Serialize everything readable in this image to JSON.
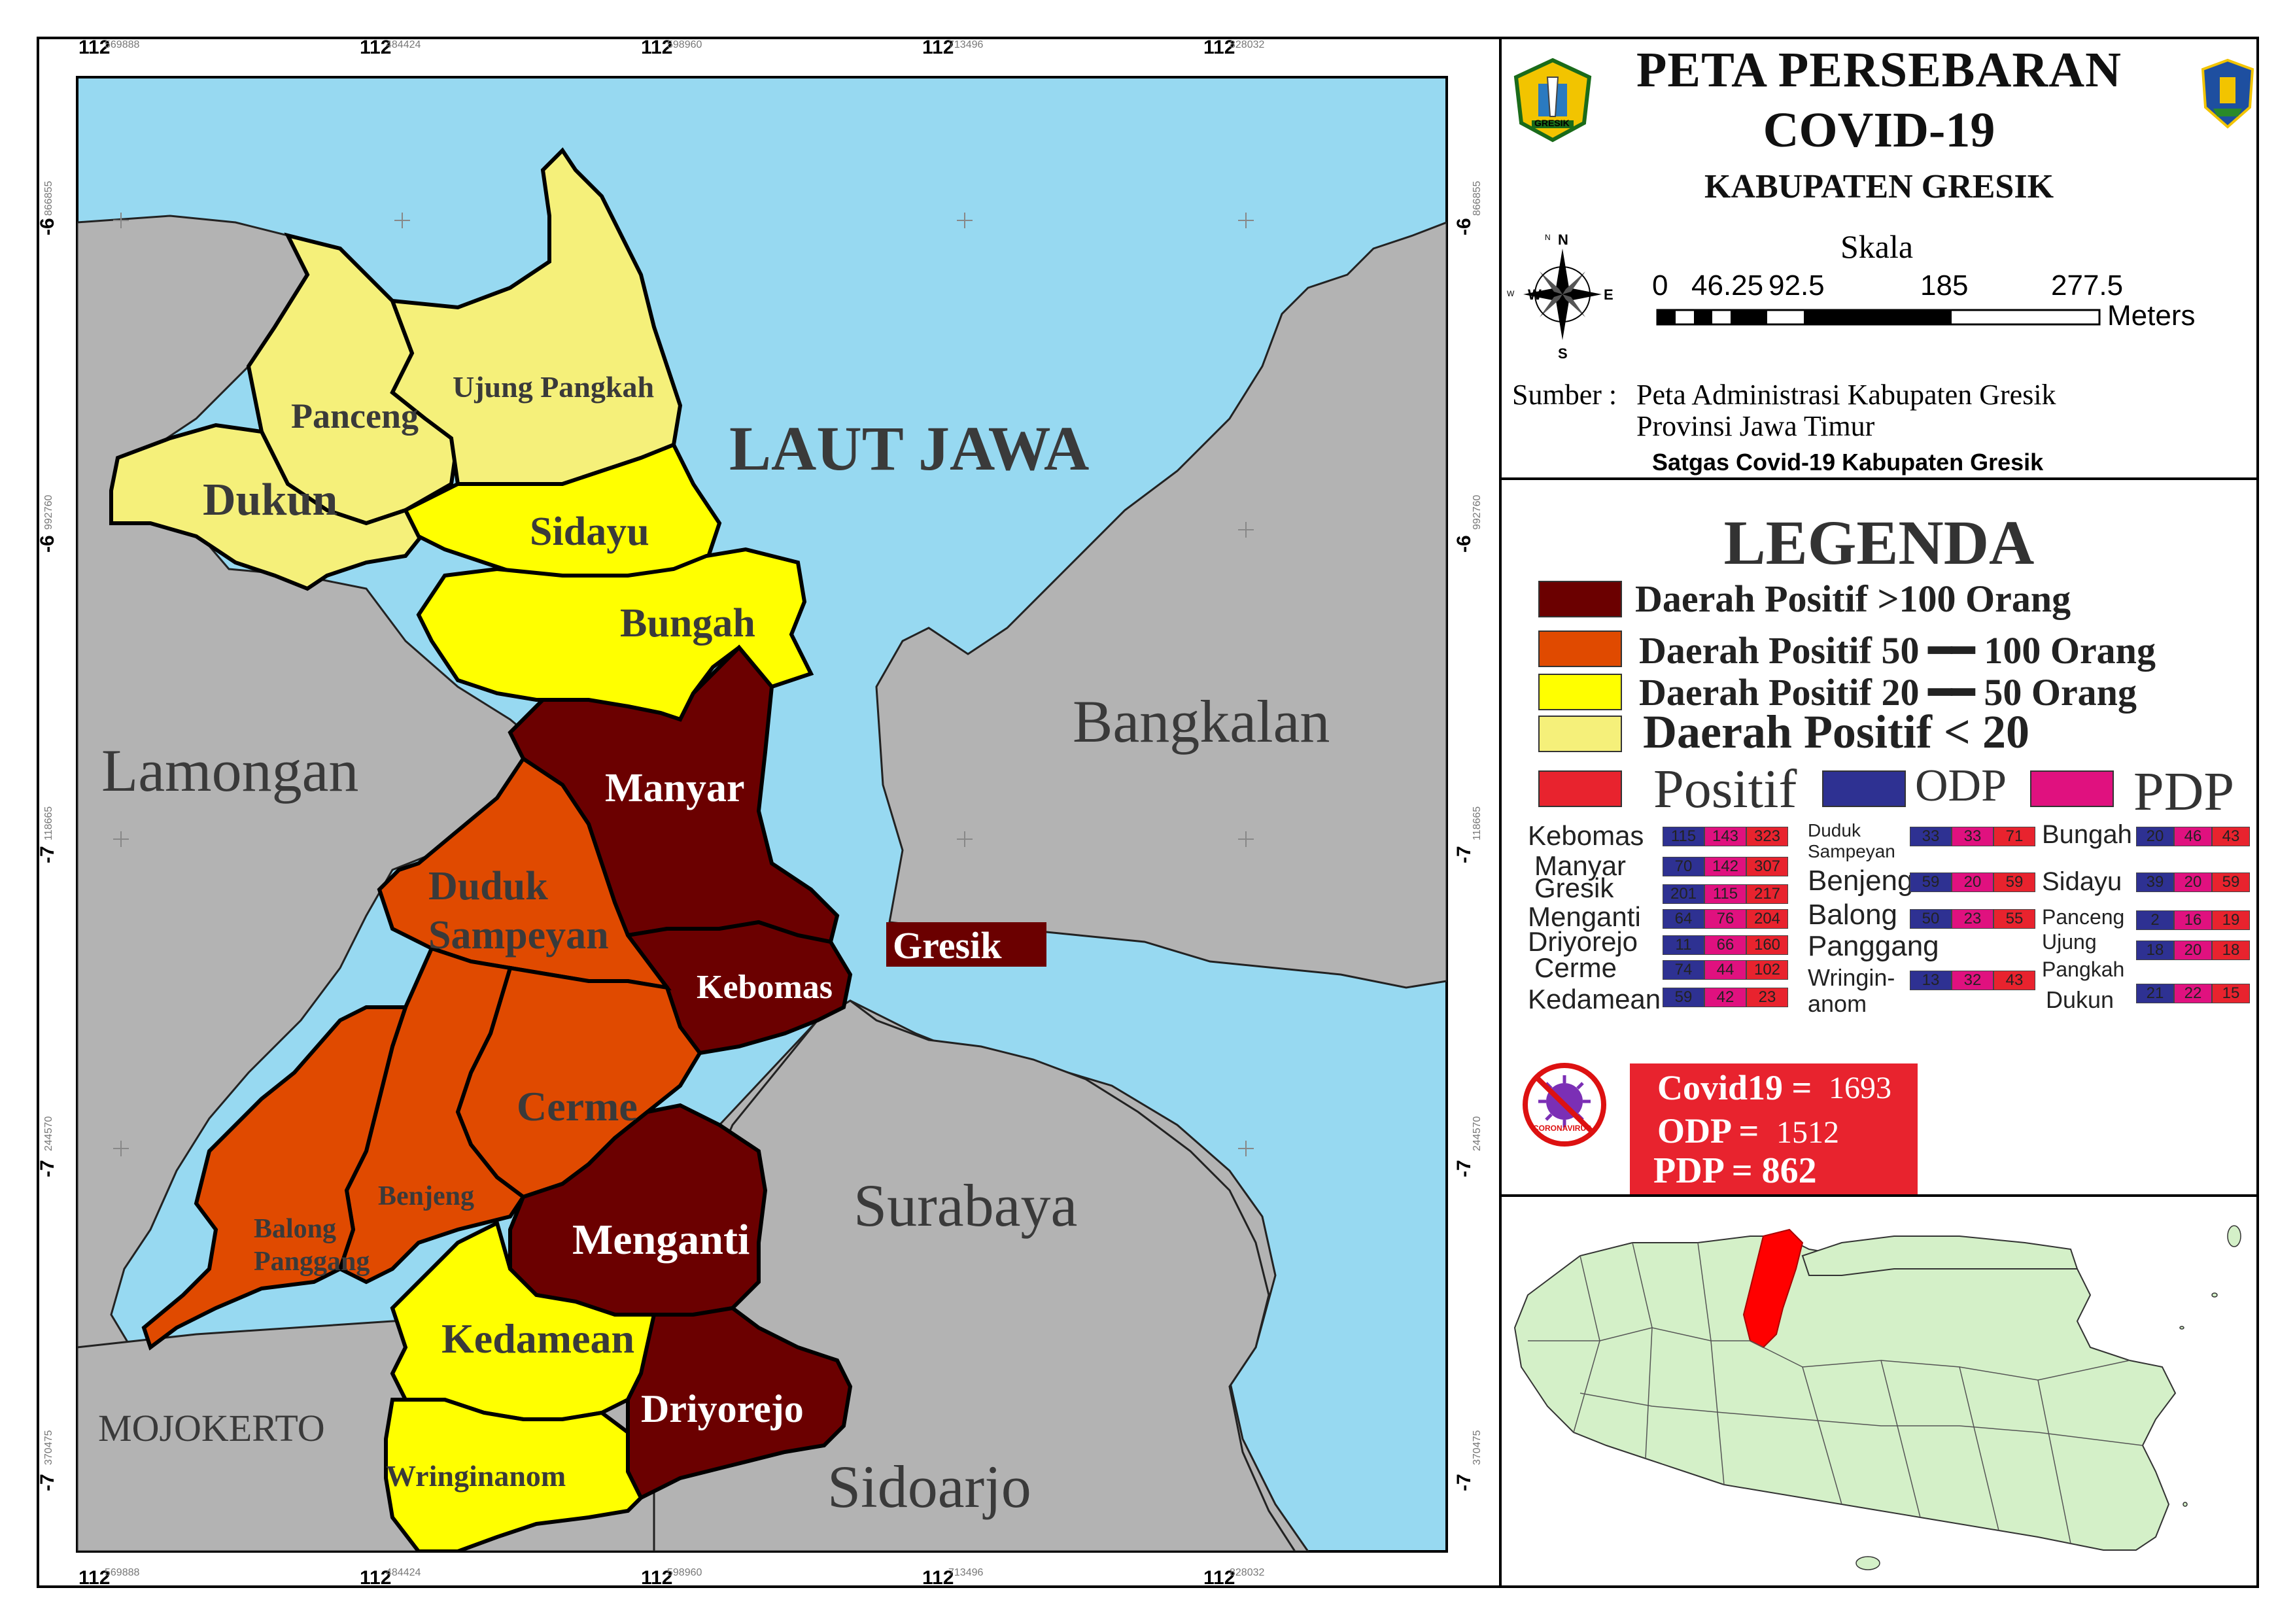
{
  "title": {
    "line1": "PETA PERSEBARAN",
    "line2": "COVID-19",
    "line3": "KABUPATEN GRESIK",
    "left_logo_caption": "GRESIK",
    "left_logo_icon": "gresik-regency-emblem",
    "right_logo_icon": "east-java-province-emblem"
  },
  "scale": {
    "label": "Skala",
    "ticks": [
      "0",
      "46.25",
      "92.5",
      "185",
      "277.5"
    ],
    "unit": "Meters"
  },
  "compass": {
    "n": "N",
    "s": "S",
    "e": "E",
    "w": "W",
    "n_small": "N",
    "w_small": "W",
    "icon": "north-arrow-compass-rose"
  },
  "source": {
    "label": "Sumber :",
    "line1": "Peta Administrasi Kabupaten Gresik",
    "line2": "Provinsi Jawa Timur",
    "credit": "Satgas Covid-19 Kabupaten Gresik"
  },
  "legend": {
    "title": "LEGENDA",
    "classes": [
      {
        "label": "Daerah Positif >100 Orang",
        "color": "#6b0000"
      },
      {
        "label": "Daerah Positif 50 ━━ 100 Orang",
        "color": "#e04a00"
      },
      {
        "label": "Daerah Positif 20 ━━ 50 Orang",
        "color": "#ffff00"
      },
      {
        "label": "Daerah Positif < 20",
        "color": "#f5f07a"
      }
    ],
    "series": [
      {
        "label": "Positif",
        "color": "#e8232e"
      },
      {
        "label": "ODP",
        "color": "#2e3192"
      },
      {
        "label": "PDP",
        "color": "#e0117f"
      }
    ]
  },
  "district_stats": {
    "col1": [
      {
        "name": "Kebomas",
        "values": [
          "115",
          "143",
          "323"
        ]
      },
      {
        "name": "Manyar",
        "values": [
          "70",
          "142",
          "307"
        ]
      },
      {
        "name": "Gresik",
        "values": [
          "201",
          "115",
          "217"
        ]
      },
      {
        "name": "Menganti",
        "values": [
          "64",
          "76",
          "204"
        ]
      },
      {
        "name": "Driyorejo",
        "values": [
          "11",
          "66",
          "160"
        ]
      },
      {
        "name": "Cerme",
        "values": [
          "74",
          "44",
          "102"
        ]
      },
      {
        "name": "Kedamean",
        "values": [
          "59",
          "42",
          "23"
        ]
      }
    ],
    "col2": [
      {
        "name": "Duduk Sampeyan",
        "values": [
          "33",
          "33",
          "71"
        ]
      },
      {
        "name": "Benjeng",
        "values": [
          "59",
          "20",
          "59"
        ]
      },
      {
        "name": "Balong Panggang",
        "values": [
          "50",
          "23",
          "55"
        ]
      },
      {
        "name": "Wringin-anom",
        "values": [
          "13",
          "32",
          "43"
        ]
      }
    ],
    "col3": [
      {
        "name": "Bungah",
        "values": [
          "20",
          "46",
          "43"
        ]
      },
      {
        "name": "Sidayu",
        "values": [
          "39",
          "20",
          "59"
        ]
      },
      {
        "name": "Panceng",
        "values": [
          "2",
          "16",
          "19"
        ]
      },
      {
        "name": "Ujung Pangkah",
        "values": [
          "18",
          "20",
          "18"
        ]
      },
      {
        "name": "Dukun",
        "values": [
          "21",
          "22",
          "15"
        ]
      }
    ],
    "labels_extra": {
      "col1_gresik": "Gresik",
      "col2_duduk_a": "Duduk",
      "col2_duduk_b": "Sampeyan",
      "col2_balong": "Balong",
      "col2_panggang": "Panggang",
      "col2_wringin_a": "Wringin-",
      "col2_wringin_b": "anom",
      "col3_ujung_a": "Ujung",
      "col3_ujung_b": "Pangkah"
    }
  },
  "totals": {
    "covid_label": "Covid19 =",
    "covid_value": "1693",
    "odp_label": "ODP =",
    "odp_value": "1512",
    "pdp_label": "PDP = 862",
    "virus_icon": "coronavirus-icon",
    "virus_caption": "CORONAVIRUS"
  },
  "map_labels": {
    "sea": "LAUT JAWA",
    "lamongan": "Lamongan",
    "bangkalan": "Bangkalan",
    "surabaya": "Surabaya",
    "sidoarjo": "Sidoarjo",
    "mojokerto": "MOJOKERTO",
    "gresik_town": "Gresik",
    "panceng": "Panceng",
    "ujung_pangkah": "Ujung Pangkah",
    "dukun": "Dukun",
    "sidayu": "Sidayu",
    "bungah": "Bungah",
    "manyar": "Manyar",
    "duduk": "Duduk",
    "sampeyan": "Sampeyan",
    "kebomas": "Kebomas",
    "cerme": "Cerme",
    "benjeng": "Benjeng",
    "balong": "Balong",
    "panggang": "Panggang",
    "menganti": "Menganti",
    "kedamean": "Kedamean",
    "driyorejo": "Driyorejo",
    "wringinanom": "Wringinanom"
  },
  "grid": {
    "x_major": [
      "112",
      "112",
      "112",
      "112",
      "112"
    ],
    "x_minor": [
      "569888",
      "484424",
      "598960",
      "713496",
      "828032"
    ],
    "y_major": [
      "-6",
      "-6",
      "-7",
      "-7",
      "-7"
    ],
    "y_minor": [
      "866855",
      "992760",
      "118665",
      "244570",
      "370475"
    ]
  },
  "colors": {
    "sea": "#97d9f1",
    "land": "#b3b3b3",
    "class_gt100": "#6b0000",
    "class_50_100": "#e04a00",
    "class_20_50": "#ffff00",
    "class_lt20": "#f5f07a",
    "inset_land": "#d4f0c8",
    "inset_highlight": "#ff0000"
  }
}
